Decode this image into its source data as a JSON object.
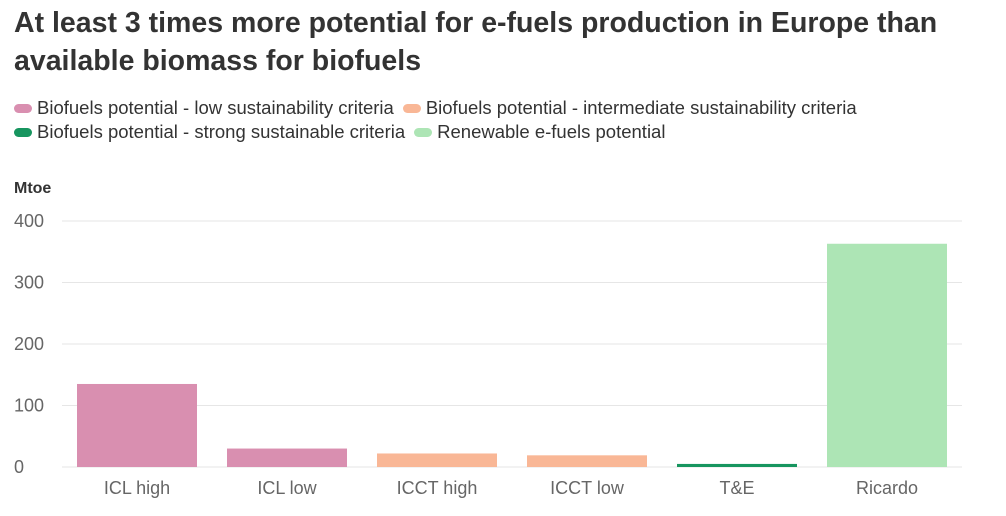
{
  "title": "At least 3 times more potential for e-fuels production in Europe than available biomass for biofuels",
  "colors": {
    "bio_low": "#D98FB0",
    "bio_intermediate": "#F9B796",
    "bio_strong": "#17955F",
    "efuels": "#ADE5B5",
    "grid": "#E6E6E6",
    "axis_text": "#666666"
  },
  "chart_data": {
    "type": "bar",
    "ylabel": "Mtoe",
    "ylim": [
      0,
      400
    ],
    "yticks": [
      0,
      100,
      200,
      300,
      400
    ],
    "grid": true,
    "legend_placement": "top",
    "legend": [
      {
        "label": "Biofuels potential - low sustainability criteria",
        "color": "#D98FB0"
      },
      {
        "label": "Biofuels potential - intermediate sustainability criteria",
        "color": "#F9B796"
      },
      {
        "label": "Biofuels potential - strong sustainable criteria",
        "color": "#17955F"
      },
      {
        "label": "Renewable e-fuels potential",
        "color": "#ADE5B5"
      }
    ],
    "categories": [
      "ICL high",
      "ICL low",
      "ICCT high",
      "ICCT low",
      "T&E",
      "Ricardo"
    ],
    "values": [
      135,
      30,
      22,
      19,
      5,
      363
    ],
    "bar_colors": [
      "#D98FB0",
      "#D98FB0",
      "#F9B796",
      "#F9B796",
      "#17955F",
      "#ADE5B5"
    ]
  }
}
